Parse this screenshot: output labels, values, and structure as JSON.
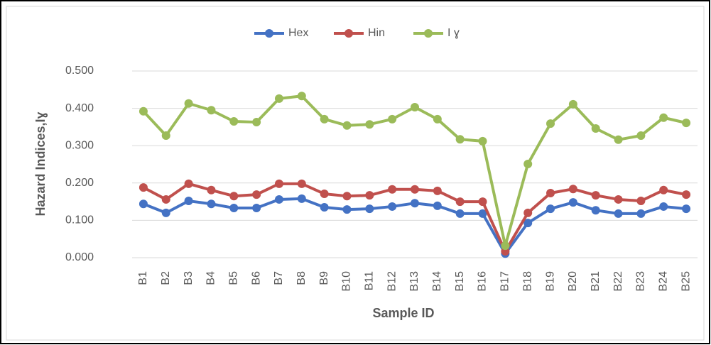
{
  "chart_data": {
    "type": "line",
    "x_label": "Sample ID",
    "y_label": "Hazard Indices,Iɣ",
    "categories": [
      "B1",
      "B2",
      "B3",
      "B4",
      "B5",
      "B6",
      "B7",
      "B8",
      "B9",
      "B10",
      "B11",
      "B12",
      "B13",
      "B14",
      "B15",
      "B16",
      "B17",
      "B18",
      "B19",
      "B20",
      "B21",
      "B22",
      "B23",
      "B24",
      "B25"
    ],
    "series": [
      {
        "name": "Hex",
        "color": "#4472c4",
        "values": [
          0.144,
          0.12,
          0.152,
          0.144,
          0.133,
          0.133,
          0.156,
          0.158,
          0.135,
          0.129,
          0.131,
          0.137,
          0.146,
          0.139,
          0.118,
          0.118,
          0.011,
          0.093,
          0.131,
          0.148,
          0.127,
          0.118,
          0.118,
          0.137,
          0.131
        ]
      },
      {
        "name": "Hin",
        "color": "#c0504d",
        "values": [
          0.188,
          0.156,
          0.198,
          0.181,
          0.165,
          0.169,
          0.198,
          0.198,
          0.171,
          0.165,
          0.167,
          0.183,
          0.183,
          0.179,
          0.15,
          0.15,
          0.017,
          0.12,
          0.173,
          0.184,
          0.167,
          0.156,
          0.152,
          0.181,
          0.169
        ]
      },
      {
        "name": "I ɣ",
        "color": "#9bbb59",
        "values": [
          0.392,
          0.327,
          0.413,
          0.395,
          0.365,
          0.363,
          0.426,
          0.433,
          0.371,
          0.354,
          0.357,
          0.371,
          0.403,
          0.371,
          0.317,
          0.312,
          0.032,
          0.251,
          0.359,
          0.411,
          0.346,
          0.316,
          0.327,
          0.375,
          0.361
        ]
      }
    ],
    "ylim": [
      0,
      0.5
    ],
    "yticks": [
      {
        "value": 0,
        "label": "0.000"
      },
      {
        "value": 0.1,
        "label": "0.100"
      },
      {
        "value": 0.2,
        "label": "0.200"
      },
      {
        "value": 0.3,
        "label": "0.300"
      },
      {
        "value": 0.4,
        "label": "0.400"
      },
      {
        "value": 0.5,
        "label": "0.500"
      }
    ],
    "grid": true,
    "legend": "top"
  }
}
